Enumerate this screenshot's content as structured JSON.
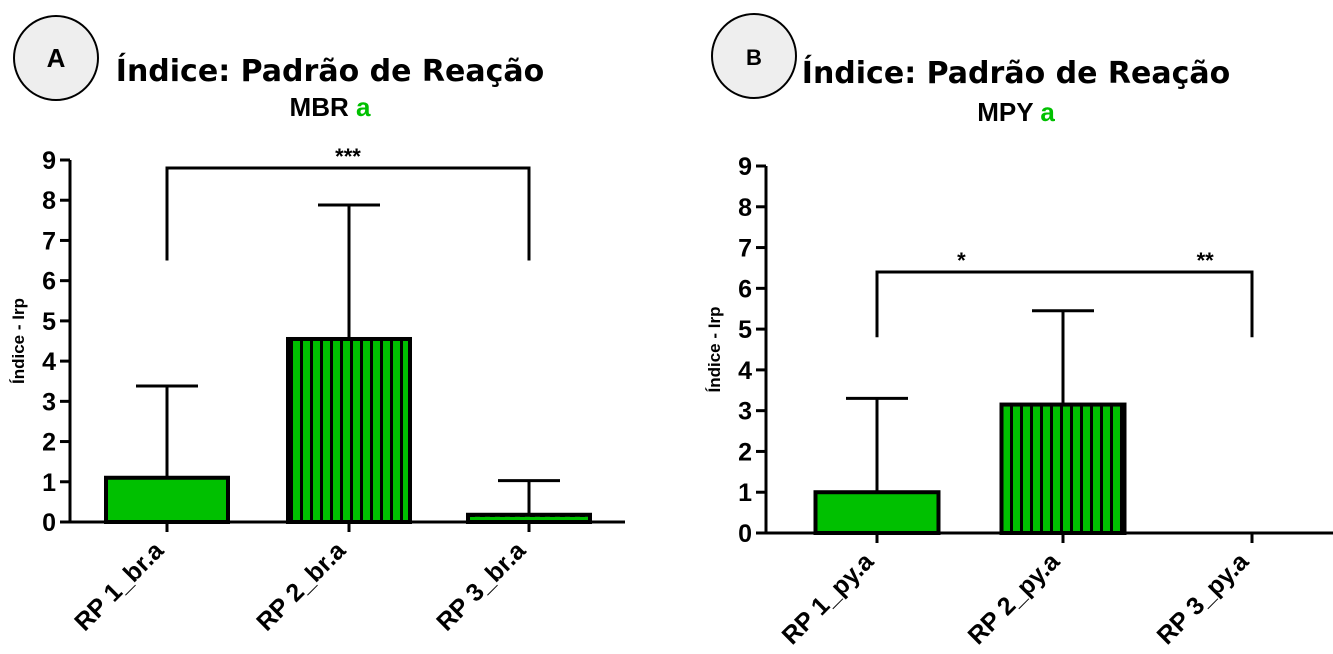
{
  "chart_data": [
    {
      "type": "bar",
      "panel_label": "A",
      "title": "Índice: Padrão de Reação",
      "subtitle_main": "MBR",
      "subtitle_accent": "a",
      "ylabel": "Índice - Irp",
      "xlabel": "",
      "ylim": [
        0,
        9
      ],
      "yticks": [
        0,
        1,
        2,
        3,
        4,
        5,
        6,
        7,
        8,
        9
      ],
      "categories": [
        "RP 1_br.a",
        "RP 2_br.a",
        "RP 3_br.a"
      ],
      "values": [
        1.1,
        4.55,
        0.18
      ],
      "errors": [
        2.28,
        3.33,
        0.85
      ],
      "patterns": [
        "solid",
        "vstripe",
        "hstripe"
      ],
      "brackets": [
        {
          "from": 0,
          "to": 2,
          "label": "***",
          "y": 8.8,
          "leg_bottom": 6.5,
          "label_x_pos": 1.0
        }
      ],
      "grid": false,
      "legend": "none"
    },
    {
      "type": "bar",
      "panel_label": "B",
      "title": "Índice: Padrão de Reação",
      "subtitle_main": "MPY",
      "subtitle_accent": "a",
      "ylabel": "Índice - Irp",
      "xlabel": "",
      "ylim": [
        0,
        9
      ],
      "yticks": [
        0,
        1,
        2,
        3,
        4,
        5,
        6,
        7,
        8,
        9
      ],
      "categories": [
        "RP 1_py.a",
        "RP 2_py.a",
        "RP 3_py.a"
      ],
      "values": [
        1.0,
        3.15,
        0.0
      ],
      "errors": [
        2.3,
        2.3,
        0.0
      ],
      "patterns": [
        "solid",
        "vstripe",
        "solid"
      ],
      "brackets": [
        {
          "from": 0,
          "to": 2,
          "label": "*",
          "y": 6.4,
          "leg_bottom": 4.8,
          "label_x_pos": 0.45
        },
        {
          "from": 0,
          "to": 2,
          "label": "**",
          "y": 6.4,
          "leg_bottom": 4.8,
          "label_x_pos": 1.75
        }
      ],
      "grid": false,
      "legend": "none"
    }
  ],
  "colors": {
    "bar_fill": "#00c000",
    "stripe": "#000000",
    "axis": "#000000",
    "accent_text": "#00c000",
    "circle_fill": "#eeeeee",
    "circle_stroke": "#000000"
  }
}
